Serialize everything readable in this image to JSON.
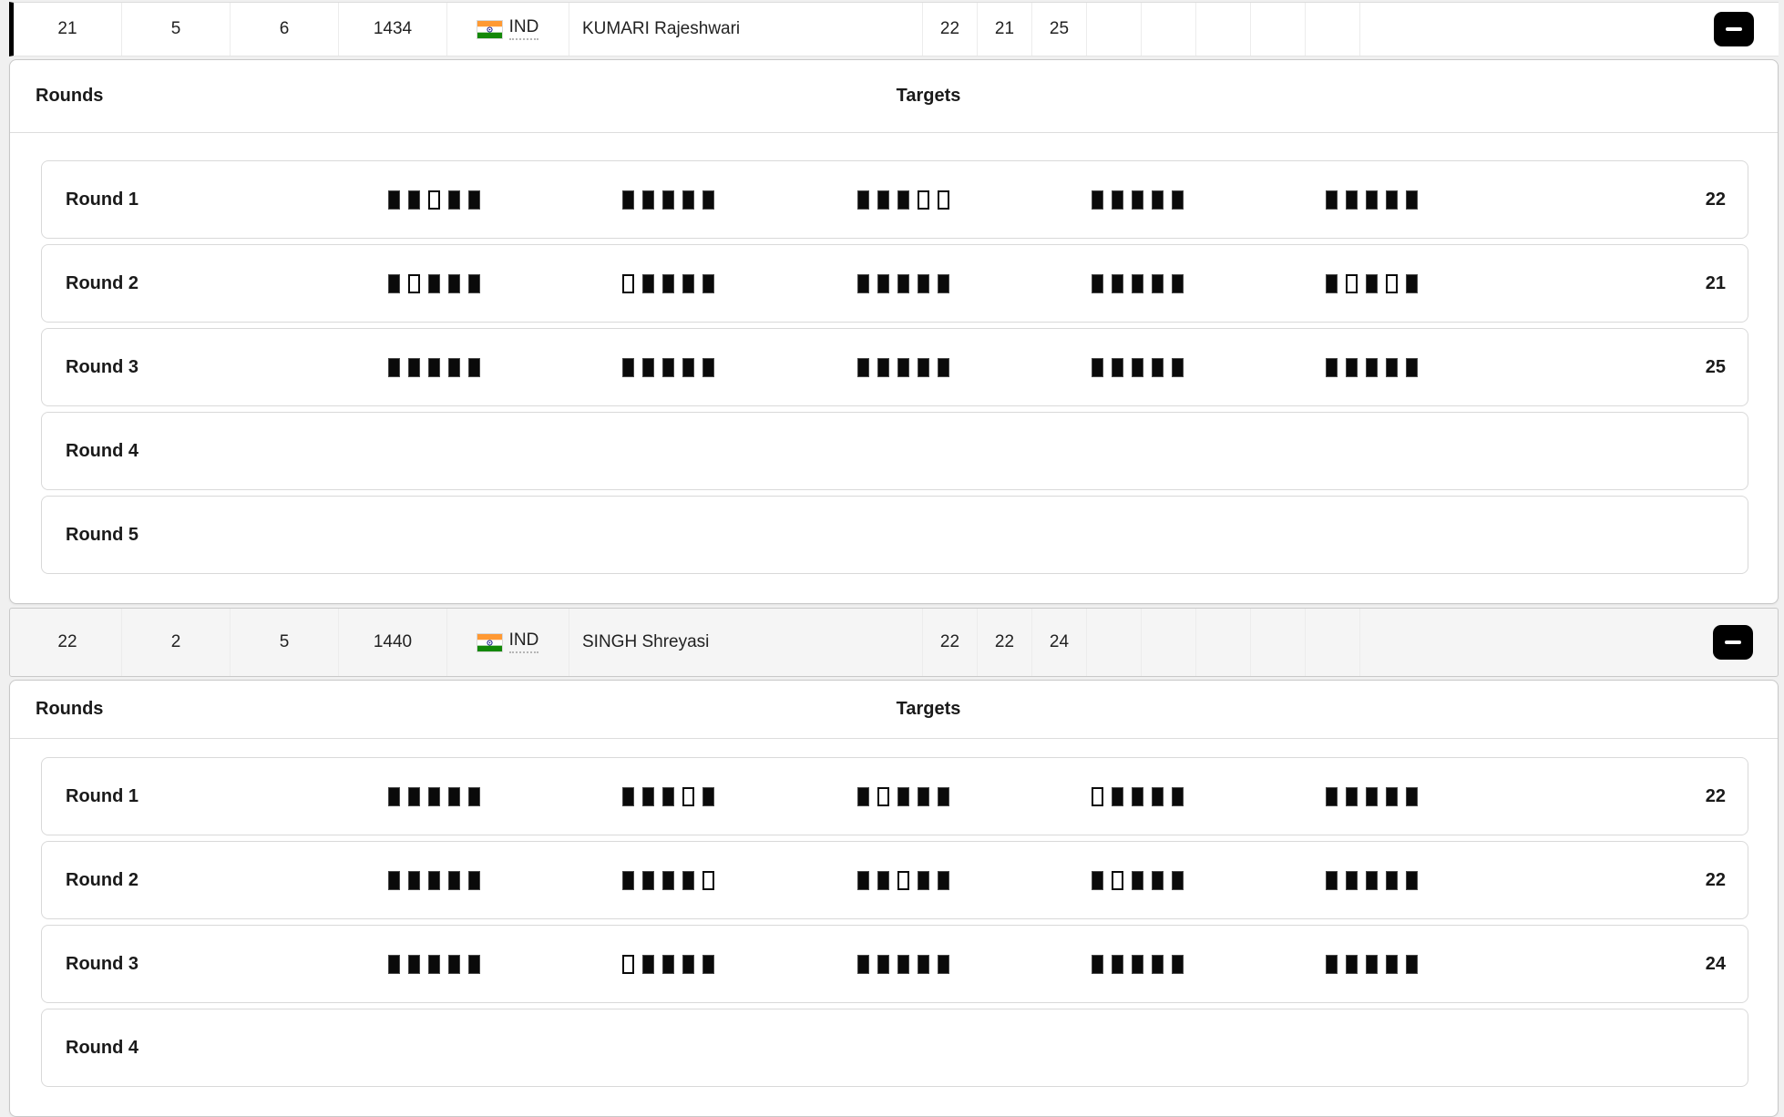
{
  "panel_labels": {
    "rounds": "Rounds",
    "targets": "Targets"
  },
  "controls": {
    "collapse_icon": "minus"
  },
  "flag": {
    "name": "india-flag",
    "saffron": "#FF9933",
    "white": "#FFFFFF",
    "green": "#138808",
    "navy": "#000080"
  },
  "colors": {
    "selected_bar": "#000000",
    "hit": "#0a0a0a",
    "button": "#000000",
    "panel_border": "#c8c8c8"
  },
  "legend": {
    "hit_square": "filled = hit",
    "miss_square": "outline = miss"
  },
  "athletes": [
    {
      "selected": true,
      "stats": [
        "21",
        "5",
        "6",
        "1434"
      ],
      "noc": "IND",
      "name": "KUMARI Rajeshwari",
      "round_totals": [
        "22",
        "21",
        "25",
        "",
        "",
        "",
        "",
        ""
      ],
      "rounds": [
        {
          "label": "Round 1",
          "groups": [
            "11011",
            "11111",
            "11100",
            "11111",
            "11111"
          ],
          "total": "22"
        },
        {
          "label": "Round 2",
          "groups": [
            "10111",
            "01111",
            "11111",
            "11111",
            "10101"
          ],
          "total": "21"
        },
        {
          "label": "Round 3",
          "groups": [
            "11111",
            "11111",
            "11111",
            "11111",
            "11111"
          ],
          "total": "25"
        },
        {
          "label": "Round 4",
          "groups": [],
          "total": ""
        },
        {
          "label": "Round 5",
          "groups": [],
          "total": ""
        }
      ]
    },
    {
      "selected": false,
      "stats": [
        "22",
        "2",
        "5",
        "1440"
      ],
      "noc": "IND",
      "name": "SINGH Shreyasi",
      "round_totals": [
        "22",
        "22",
        "24",
        "",
        "",
        "",
        "",
        ""
      ],
      "rounds": [
        {
          "label": "Round 1",
          "groups": [
            "11111",
            "11101",
            "10111",
            "01111",
            "11111"
          ],
          "total": "22"
        },
        {
          "label": "Round 2",
          "groups": [
            "11111",
            "11110",
            "11011",
            "10111",
            "11111"
          ],
          "total": "22"
        },
        {
          "label": "Round 3",
          "groups": [
            "11111",
            "01111",
            "11111",
            "11111",
            "11111"
          ],
          "total": "24"
        },
        {
          "label": "Round 4",
          "groups": [],
          "total": ""
        }
      ]
    }
  ]
}
